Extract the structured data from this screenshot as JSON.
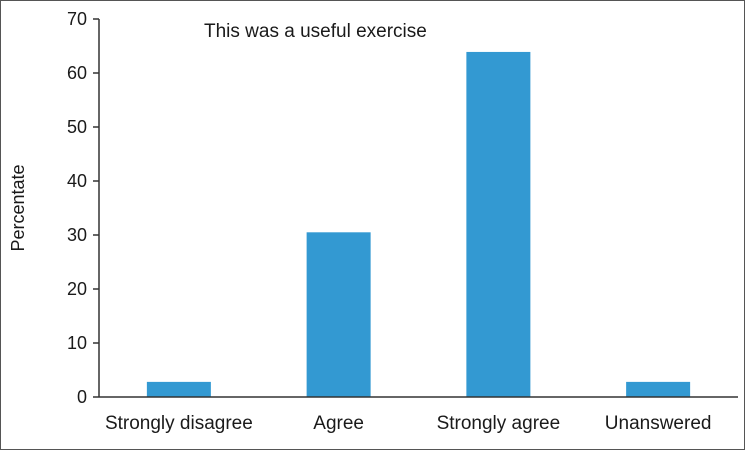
{
  "chart_data": {
    "type": "bar",
    "title": "This was a useful exercise",
    "xlabel": "",
    "ylabel": "Percentate",
    "categories": [
      "Strongly disagree",
      "Agree",
      "Strongly agree",
      "Unanswered"
    ],
    "values": [
      2.8,
      30.5,
      63.9,
      2.8
    ],
    "ylim": [
      0,
      70
    ],
    "yticks": [
      0,
      10,
      20,
      30,
      40,
      50,
      60,
      70
    ],
    "grid": false,
    "legend": "none",
    "bar_color": "#3399d2"
  }
}
